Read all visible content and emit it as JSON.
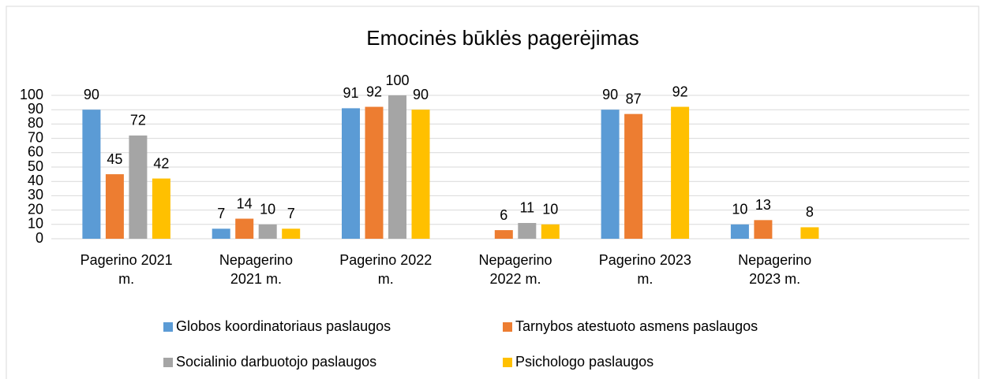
{
  "chart_data": {
    "type": "bar",
    "title": "Emocinės būklės pagerėjimas",
    "categories": [
      "Pagerino 2021 m.",
      "Nepagerino 2021 m.",
      "Pagerino 2022 m.",
      "Nepagerino 2022 m.",
      "Pagerino 2023 m.",
      "Nepagerino 2023 m.",
      null
    ],
    "series": [
      {
        "name": "Globos koordinatoriaus paslaugos",
        "color": "#5b9bd5",
        "values": [
          90,
          7,
          91,
          null,
          90,
          10,
          null
        ]
      },
      {
        "name": "Tarnybos atestuoto asmens paslaugos",
        "color": "#ed7d31",
        "values": [
          45,
          14,
          92,
          6,
          87,
          13,
          null
        ]
      },
      {
        "name": "Socialinio darbuotojo paslaugos",
        "color": "#a5a5a5",
        "values": [
          72,
          10,
          100,
          11,
          null,
          null,
          null
        ]
      },
      {
        "name": "Psichologo paslaugos",
        "color": "#ffc000",
        "values": [
          42,
          7,
          90,
          10,
          92,
          8,
          null
        ]
      }
    ],
    "ylim": [
      0,
      100
    ],
    "yticks": [
      0,
      10,
      20,
      30,
      40,
      50,
      60,
      70,
      80,
      90,
      100
    ],
    "grid": true,
    "legend": "bottom"
  }
}
